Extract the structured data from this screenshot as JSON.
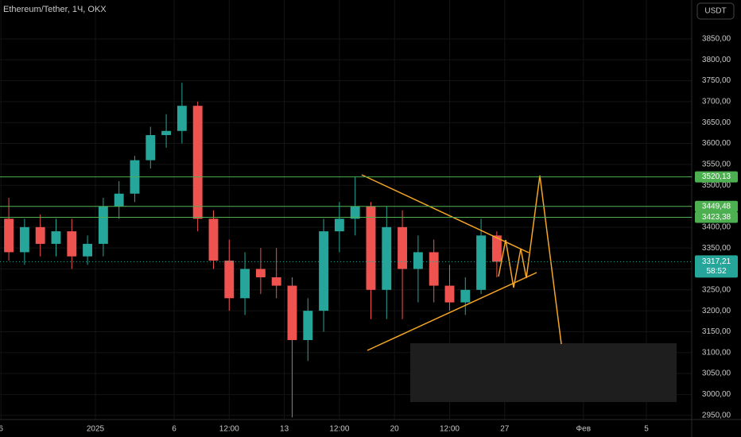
{
  "header": {
    "title": "Ethereum/Tether, 1Ч, OKX",
    "currency": "USDT"
  },
  "chart_data": {
    "type": "candlestick",
    "x": [
      -6,
      -5,
      -4,
      -3,
      -2,
      -1,
      0,
      1,
      2,
      3,
      4,
      5,
      6,
      7,
      8,
      9,
      10,
      11,
      12,
      13,
      14,
      15,
      16,
      17,
      18,
      19,
      20,
      21,
      22,
      23,
      24,
      25
    ],
    "open": [
      3420,
      3340,
      3400,
      3360,
      3390,
      3330,
      3360,
      3450,
      3480,
      3560,
      3620,
      3630,
      3690,
      3420,
      3320,
      3230,
      3300,
      3280,
      3260,
      3130,
      3200,
      3390,
      3420,
      3450,
      3250,
      3400,
      3300,
      3340,
      3260,
      3220,
      3250,
      3380
    ],
    "high": [
      3470,
      3420,
      3430,
      3420,
      3420,
      3380,
      3470,
      3510,
      3570,
      3640,
      3670,
      3745,
      3700,
      3440,
      3370,
      3340,
      3350,
      3350,
      3280,
      3230,
      3420,
      3460,
      3520,
      3460,
      3450,
      3440,
      3380,
      3370,
      3310,
      3280,
      3420,
      3390
    ],
    "low": [
      3320,
      3310,
      3330,
      3330,
      3300,
      3310,
      3330,
      3420,
      3460,
      3540,
      3590,
      3600,
      3390,
      3300,
      3200,
      3190,
      3240,
      3230,
      2945,
      3080,
      3150,
      3340,
      3380,
      3180,
      3180,
      3180,
      3220,
      3220,
      3200,
      3190,
      3240,
      3280
    ],
    "close": [
      3340,
      3400,
      3360,
      3390,
      3330,
      3360,
      3450,
      3480,
      3560,
      3620,
      3630,
      3690,
      3420,
      3320,
      3230,
      3300,
      3280,
      3260,
      3130,
      3200,
      3390,
      3420,
      3450,
      3250,
      3400,
      3300,
      3340,
      3260,
      3220,
      3250,
      3380,
      3317.21
    ],
    "up_color": "#26a69a",
    "down_color": "#ef5350",
    "xlim": [
      -6.06,
      37.88
    ],
    "xticks": [
      {
        "value": -6,
        "label": "6"
      },
      {
        "value": 0,
        "label": "2025"
      },
      {
        "value": 5,
        "label": "6"
      },
      {
        "value": 8.5,
        "label": "12:00"
      },
      {
        "value": 12,
        "label": "13"
      },
      {
        "value": 15.5,
        "label": "12:00"
      },
      {
        "value": 19,
        "label": "20"
      },
      {
        "value": 22.5,
        "label": "12:00"
      },
      {
        "value": 26,
        "label": "27"
      },
      {
        "value": 31,
        "label": "Фев"
      },
      {
        "value": 35,
        "label": "5"
      }
    ],
    "ylim": [
      2940,
      3943
    ],
    "yticks": [
      {
        "value": 2950,
        "label": "2950,00"
      },
      {
        "value": 3000,
        "label": "3000,00"
      },
      {
        "value": 3050,
        "label": "3050,00"
      },
      {
        "value": 3100,
        "label": "3100,00"
      },
      {
        "value": 3150,
        "label": "3150,00"
      },
      {
        "value": 3200,
        "label": "3200,00"
      },
      {
        "value": 3250,
        "label": "3250,00"
      },
      {
        "value": 3300,
        "label": "3300,00"
      },
      {
        "value": 3350,
        "label": "3350,00"
      },
      {
        "value": 3400,
        "label": "3400,00"
      },
      {
        "value": 3450,
        "label": "3450,00"
      },
      {
        "value": 3500,
        "label": "3500,00"
      },
      {
        "value": 3550,
        "label": "3550,00"
      },
      {
        "value": 3600,
        "label": "3600,00"
      },
      {
        "value": 3650,
        "label": "3650,00"
      },
      {
        "value": 3700,
        "label": "3700,00"
      },
      {
        "value": 3750,
        "label": "3750,00"
      },
      {
        "value": 3800,
        "label": "3800,00"
      },
      {
        "value": 3850,
        "label": "3850,00"
      }
    ],
    "levels": [
      {
        "value": 3520.13,
        "label": "3520,13"
      },
      {
        "value": 3449.48,
        "label": "3449,48"
      },
      {
        "value": 3423.38,
        "label": "3423,38"
      }
    ],
    "level_color": "#4caf50",
    "last_price": {
      "value": 3317.21,
      "label": "3317,21"
    },
    "countdown": "58:52",
    "grid": true
  }
}
